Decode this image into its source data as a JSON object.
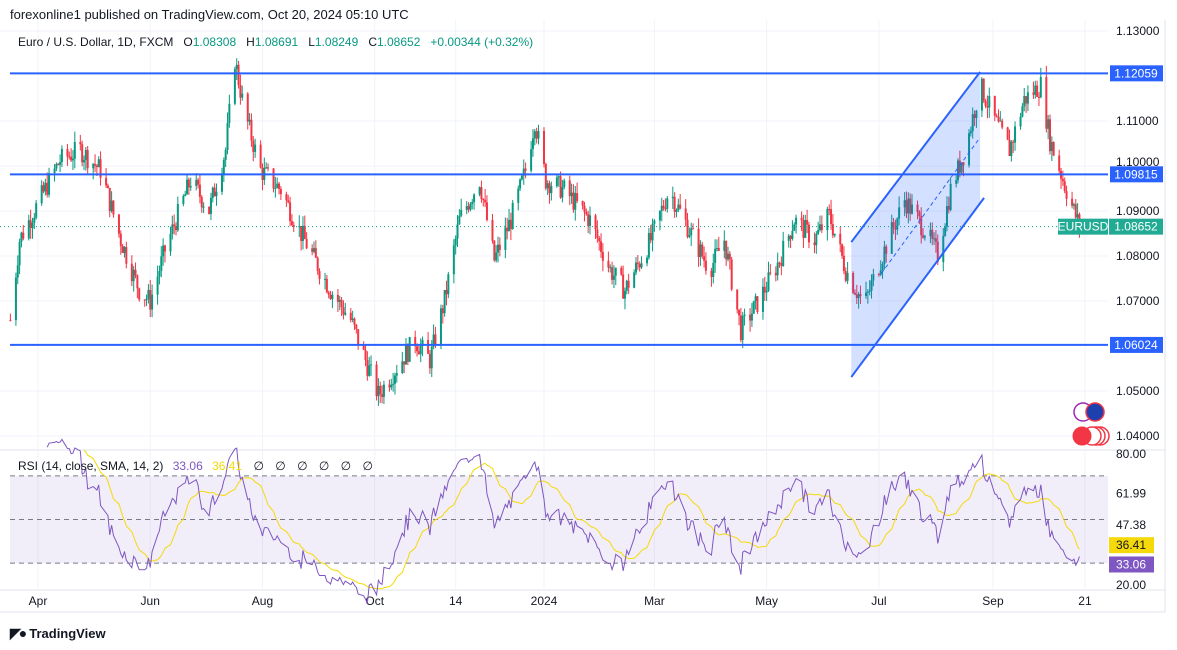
{
  "header": {
    "published": "forexonline1 published on TradingView.com, Oct 20, 2024 05:10 UTC",
    "symbol": "Euro / U.S. Dollar, 1D, FXCM",
    "open_label": "O",
    "open": "1.08308",
    "high_label": "H",
    "high": "1.08691",
    "low_label": "L",
    "low": "1.08249",
    "close_label": "C",
    "close": "1.08652",
    "change": "+0.00344 (+0.32%)"
  },
  "rsi_legend": {
    "label": "RSI (14, close, SMA, 14, 2)",
    "rsi": "33.06",
    "sma": "36.41",
    "empty": [
      "∅",
      "∅",
      "∅",
      "∅",
      "∅",
      "∅"
    ]
  },
  "footer": {
    "brand": "TradingView"
  },
  "colors": {
    "up": "#089981",
    "down": "#f23645",
    "level": "#2962ff",
    "rsi": "#7e57c2",
    "rsi_sma": "#f5d90a",
    "channel_fill": "#2962ff"
  },
  "chart_data": {
    "type": "candlestick",
    "symbol": "EURUSD",
    "last_price": "1.08652",
    "price_ticks": [
      "1.13000",
      "1.11000",
      "1.10000",
      "1.09000",
      "1.08000",
      "1.07000",
      "1.05000",
      "1.04000"
    ],
    "ylim": [
      1.04,
      1.13
    ],
    "time_ticks": [
      {
        "label": "Apr",
        "date": "2023-04-01"
      },
      {
        "label": "Jun",
        "date": "2023-06-01"
      },
      {
        "label": "Aug",
        "date": "2023-08-01"
      },
      {
        "label": "Oct",
        "date": "2023-10-01"
      },
      {
        "label": "14",
        "date": "2023-11-14"
      },
      {
        "label": "2024",
        "date": "2024-01-01"
      },
      {
        "label": "Mar",
        "date": "2024-03-01"
      },
      {
        "label": "May",
        "date": "2024-05-01"
      },
      {
        "label": "Jul",
        "date": "2024-07-01"
      },
      {
        "label": "Sep",
        "date": "2024-09-01"
      },
      {
        "label": "21",
        "date": "2024-10-21"
      }
    ],
    "grid": true,
    "close_path": [
      [
        "2023-03-17",
        1.0658
      ],
      [
        "2023-03-22",
        1.0836
      ],
      [
        "2023-04-02",
        1.0925
      ],
      [
        "2023-04-13",
        1.1013
      ],
      [
        "2023-04-24",
        1.1036
      ],
      [
        "2023-05-05",
        1.0991
      ],
      [
        "2023-05-16",
        1.0836
      ],
      [
        "2023-05-26",
        1.0724
      ],
      [
        "2023-06-01",
        1.07
      ],
      [
        "2023-06-09",
        1.0813
      ],
      [
        "2023-06-23",
        1.0969
      ],
      [
        "2023-07-03",
        1.0902
      ],
      [
        "2023-07-12",
        1.1036
      ],
      [
        "2023-07-17",
        1.1236
      ],
      [
        "2023-07-22",
        1.1124
      ],
      [
        "2023-07-31",
        1.0991
      ],
      [
        "2023-08-11",
        1.0947
      ],
      [
        "2023-08-21",
        1.0858
      ],
      [
        "2023-09-07",
        1.0724
      ],
      [
        "2023-09-18",
        1.0658
      ],
      [
        "2023-09-26",
        1.0569
      ],
      [
        "2023-10-03",
        1.0491
      ],
      [
        "2023-10-12",
        1.0547
      ],
      [
        "2023-10-23",
        1.0613
      ],
      [
        "2023-10-31",
        1.0569
      ],
      [
        "2023-11-08",
        1.0702
      ],
      [
        "2023-11-16",
        1.088
      ],
      [
        "2023-11-27",
        1.0969
      ],
      [
        "2023-12-05",
        1.0791
      ],
      [
        "2023-12-14",
        1.088
      ],
      [
        "2023-12-22",
        1.0991
      ],
      [
        "2023-12-27",
        1.1102
      ],
      [
        "2024-01-02",
        1.0969
      ],
      [
        "2024-01-12",
        1.0947
      ],
      [
        "2024-01-26",
        1.088
      ],
      [
        "2024-02-06",
        1.0769
      ],
      [
        "2024-02-14",
        1.0724
      ],
      [
        "2024-02-28",
        1.0836
      ],
      [
        "2024-03-09",
        1.0947
      ],
      [
        "2024-03-20",
        1.0858
      ],
      [
        "2024-03-31",
        1.0769
      ],
      [
        "2024-04-08",
        1.0836
      ],
      [
        "2024-04-17",
        1.0636
      ],
      [
        "2024-04-27",
        1.0702
      ],
      [
        "2024-05-08",
        1.0791
      ],
      [
        "2024-05-16",
        1.088
      ],
      [
        "2024-05-27",
        1.0836
      ],
      [
        "2024-06-04",
        1.0891
      ],
      [
        "2024-06-13",
        1.0769
      ],
      [
        "2024-06-23",
        1.0691
      ],
      [
        "2024-07-04",
        1.0813
      ],
      [
        "2024-07-15",
        1.0925
      ],
      [
        "2024-07-26",
        1.0858
      ],
      [
        "2024-08-02",
        1.0802
      ],
      [
        "2024-08-09",
        1.0947
      ],
      [
        "2024-08-17",
        1.1036
      ],
      [
        "2024-08-25",
        1.118
      ],
      [
        "2024-09-02",
        1.1102
      ],
      [
        "2024-09-10",
        1.1036
      ],
      [
        "2024-09-18",
        1.1147
      ],
      [
        "2024-09-27",
        1.118
      ],
      [
        "2024-10-02",
        1.1058
      ],
      [
        "2024-10-10",
        1.0958
      ],
      [
        "2024-10-18",
        1.08652
      ]
    ],
    "horizontal_levels": [
      "1.12059",
      "1.09815",
      "1.06024"
    ],
    "channel": {
      "start": "2024-06-16",
      "end": "2024-08-25",
      "upper": [
        1.0831,
        1.1209
      ],
      "lower": [
        1.0531,
        1.0918
      ]
    },
    "rsi": {
      "period": 14,
      "ylim": [
        20,
        80
      ],
      "bands": [
        30,
        70
      ],
      "mid": 50,
      "axis_labels": [
        "80.00",
        "61.99",
        "47.38",
        "20.00"
      ],
      "last_rsi": "33.06",
      "last_sma": "36.41"
    }
  }
}
